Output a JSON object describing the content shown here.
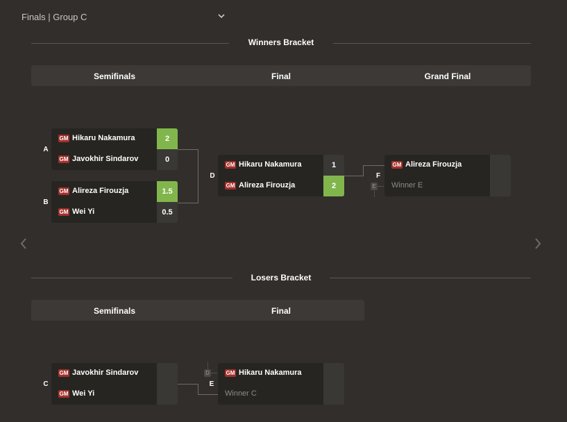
{
  "header": {
    "group_label": "Finals | Group C"
  },
  "winners": {
    "title": "Winners Bracket",
    "rounds": [
      "Semifinals",
      "Final",
      "Grand Final"
    ],
    "matches": {
      "A": {
        "label": "A",
        "players": [
          {
            "title": "GM",
            "name": "Hikaru Nakamura",
            "score": "2",
            "winner": true
          },
          {
            "title": "GM",
            "name": "Javokhir Sindarov",
            "score": "0",
            "winner": false
          }
        ]
      },
      "B": {
        "label": "B",
        "players": [
          {
            "title": "GM",
            "name": "Alireza Firouzja",
            "score": "1.5",
            "winner": true
          },
          {
            "title": "GM",
            "name": "Wei Yi",
            "score": "0.5",
            "winner": false
          }
        ]
      },
      "D": {
        "label": "D",
        "players": [
          {
            "title": "GM",
            "name": "Hikaru Nakamura",
            "score": "1",
            "winner": false
          },
          {
            "title": "GM",
            "name": "Alireza Firouzja",
            "score": "2",
            "winner": true
          }
        ]
      },
      "F": {
        "label": "F",
        "ref": "E",
        "players": [
          {
            "title": "GM",
            "name": "Alireza Firouzja",
            "score": ""
          },
          {
            "title": "",
            "name": "Winner E",
            "score": ""
          }
        ]
      }
    }
  },
  "losers": {
    "title": "Losers Bracket",
    "rounds": [
      "Semifinals",
      "Final"
    ],
    "matches": {
      "C": {
        "label": "C",
        "players": [
          {
            "title": "GM",
            "name": "Javokhir Sindarov",
            "score": ""
          },
          {
            "title": "GM",
            "name": "Wei Yi",
            "score": ""
          }
        ]
      },
      "E": {
        "label": "E",
        "ref": "D",
        "players": [
          {
            "title": "GM",
            "name": "Hikaru Nakamura",
            "score": ""
          },
          {
            "title": "",
            "name": "Winner C",
            "score": ""
          }
        ]
      }
    }
  },
  "colors": {
    "background": "#312e2b",
    "win_score": "#81b64c",
    "gm_badge": "#a3302a",
    "panel": "#272522"
  }
}
